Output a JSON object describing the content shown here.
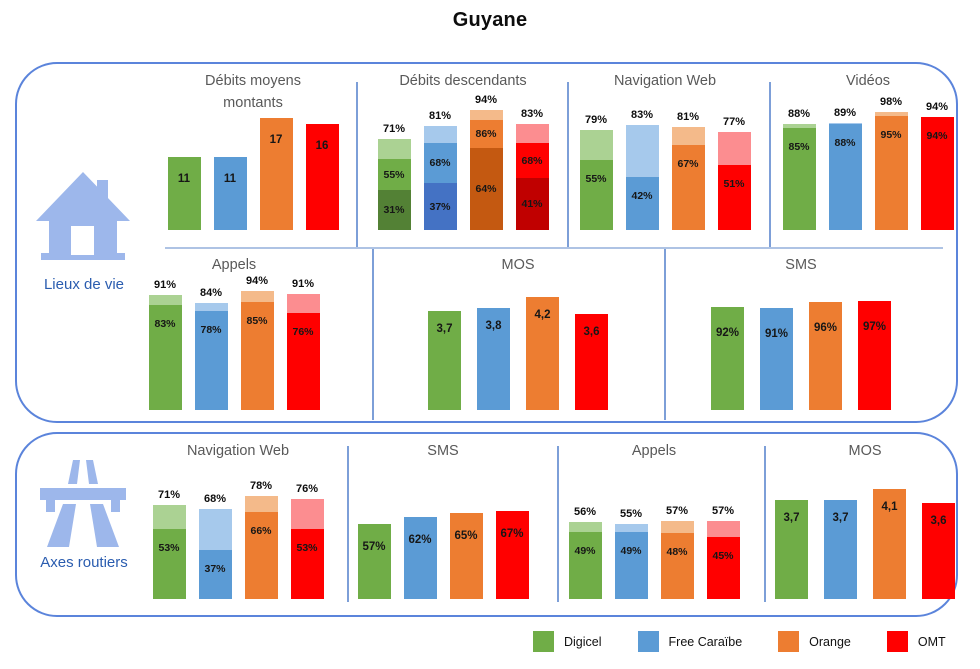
{
  "title": "Guyane",
  "operators": [
    {
      "name": "Digicel",
      "color": "#70AD47",
      "light": "#ABD293",
      "dark": "#538135"
    },
    {
      "name": "Free Caraïbe",
      "color": "#5B9BD5",
      "light": "#A6C9EC",
      "dark": "#4472C4"
    },
    {
      "name": "Orange",
      "color": "#ED7D31",
      "light": "#F4BA8A",
      "dark": "#C45911"
    },
    {
      "name": "OMT",
      "color": "#FF0000",
      "light": "#FC8D90",
      "dark": "#C00000"
    }
  ],
  "panels": [
    {
      "label": "Lieux de vie",
      "icon": "house-icon"
    },
    {
      "label": "Axes routiers",
      "icon": "motorway-icon"
    }
  ],
  "chart_data": [
    {
      "panel": "Lieux de vie",
      "title": "Débits moyens montants",
      "type": "bar",
      "format": "int",
      "categories": [
        "Digicel",
        "Free Caraïbe",
        "Orange",
        "OMT"
      ],
      "values": [
        11,
        11,
        17,
        16
      ]
    },
    {
      "panel": "Lieux de vie",
      "title": "Débits descendants",
      "type": "stacked3",
      "format": "percent",
      "categories": [
        "Digicel",
        "Free Caraïbe",
        "Orange",
        "OMT"
      ],
      "totals": [
        71,
        81,
        94,
        83
      ],
      "mid": [
        55,
        68,
        86,
        68
      ],
      "low": [
        31,
        37,
        64,
        41
      ]
    },
    {
      "panel": "Lieux de vie",
      "title": "Navigation Web",
      "type": "stacked2",
      "format": "percent",
      "categories": [
        "Digicel",
        "Free Caraïbe",
        "Orange",
        "OMT"
      ],
      "totals": [
        79,
        83,
        81,
        77
      ],
      "solid": [
        55,
        42,
        67,
        51
      ]
    },
    {
      "panel": "Lieux de vie",
      "title": "Vidéos",
      "type": "stacked2",
      "format": "percent",
      "categories": [
        "Digicel",
        "Free Caraïbe",
        "Orange",
        "OMT"
      ],
      "totals": [
        88,
        89,
        98,
        94
      ],
      "solid": [
        85,
        88,
        95,
        94
      ]
    },
    {
      "panel": "Lieux de vie",
      "title": "Appels",
      "type": "stacked2",
      "format": "percent",
      "categories": [
        "Digicel",
        "Free Caraïbe",
        "Orange",
        "OMT"
      ],
      "totals": [
        91,
        84,
        94,
        91
      ],
      "solid": [
        83,
        78,
        85,
        76
      ]
    },
    {
      "panel": "Lieux de vie",
      "title": "MOS",
      "type": "bar",
      "format": "comma",
      "categories": [
        "Digicel",
        "Free Caraïbe",
        "Orange",
        "OMT"
      ],
      "values": [
        3.7,
        3.8,
        4.2,
        3.6
      ]
    },
    {
      "panel": "Lieux de vie",
      "title": "SMS",
      "type": "bar",
      "format": "percent",
      "categories": [
        "Digicel",
        "Free Caraïbe",
        "Orange",
        "OMT"
      ],
      "values": [
        92,
        91,
        96,
        97
      ]
    },
    {
      "panel": "Axes routiers",
      "title": "Navigation Web",
      "type": "stacked2",
      "format": "percent",
      "categories": [
        "Digicel",
        "Free Caraïbe",
        "Orange",
        "OMT"
      ],
      "totals": [
        71,
        68,
        78,
        76
      ],
      "solid": [
        53,
        37,
        66,
        53
      ]
    },
    {
      "panel": "Axes routiers",
      "title": "SMS",
      "type": "bar",
      "format": "percent",
      "categories": [
        "Digicel",
        "Free Caraïbe",
        "Orange",
        "OMT"
      ],
      "values": [
        57,
        62,
        65,
        67
      ]
    },
    {
      "panel": "Axes routiers",
      "title": "Appels",
      "type": "stacked2",
      "format": "percent",
      "categories": [
        "Digicel",
        "Free Caraïbe",
        "Orange",
        "OMT"
      ],
      "totals": [
        56,
        55,
        57,
        57
      ],
      "solid": [
        49,
        49,
        48,
        45
      ]
    },
    {
      "panel": "Axes routiers",
      "title": "MOS",
      "type": "bar",
      "format": "comma",
      "categories": [
        "Digicel",
        "Free Caraïbe",
        "Orange",
        "OMT"
      ],
      "values": [
        3.7,
        3.7,
        4.1,
        3.6
      ]
    }
  ]
}
